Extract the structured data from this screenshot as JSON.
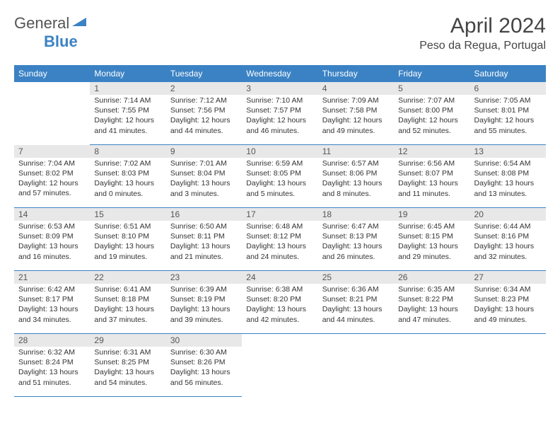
{
  "logo": {
    "text1": "General",
    "text2": "Blue"
  },
  "title": "April 2024",
  "location": "Peso da Regua, Portugal",
  "colors": {
    "header_bg": "#3b82c4",
    "header_fg": "#ffffff",
    "daynum_bg": "#e8e8e8"
  },
  "weekdays": [
    "Sunday",
    "Monday",
    "Tuesday",
    "Wednesday",
    "Thursday",
    "Friday",
    "Saturday"
  ],
  "weeks": [
    [
      null,
      {
        "n": "1",
        "l1": "Sunrise: 7:14 AM",
        "l2": "Sunset: 7:55 PM",
        "l3": "Daylight: 12 hours",
        "l4": "and 41 minutes."
      },
      {
        "n": "2",
        "l1": "Sunrise: 7:12 AM",
        "l2": "Sunset: 7:56 PM",
        "l3": "Daylight: 12 hours",
        "l4": "and 44 minutes."
      },
      {
        "n": "3",
        "l1": "Sunrise: 7:10 AM",
        "l2": "Sunset: 7:57 PM",
        "l3": "Daylight: 12 hours",
        "l4": "and 46 minutes."
      },
      {
        "n": "4",
        "l1": "Sunrise: 7:09 AM",
        "l2": "Sunset: 7:58 PM",
        "l3": "Daylight: 12 hours",
        "l4": "and 49 minutes."
      },
      {
        "n": "5",
        "l1": "Sunrise: 7:07 AM",
        "l2": "Sunset: 8:00 PM",
        "l3": "Daylight: 12 hours",
        "l4": "and 52 minutes."
      },
      {
        "n": "6",
        "l1": "Sunrise: 7:05 AM",
        "l2": "Sunset: 8:01 PM",
        "l3": "Daylight: 12 hours",
        "l4": "and 55 minutes."
      }
    ],
    [
      {
        "n": "7",
        "l1": "Sunrise: 7:04 AM",
        "l2": "Sunset: 8:02 PM",
        "l3": "Daylight: 12 hours",
        "l4": "and 57 minutes."
      },
      {
        "n": "8",
        "l1": "Sunrise: 7:02 AM",
        "l2": "Sunset: 8:03 PM",
        "l3": "Daylight: 13 hours",
        "l4": "and 0 minutes."
      },
      {
        "n": "9",
        "l1": "Sunrise: 7:01 AM",
        "l2": "Sunset: 8:04 PM",
        "l3": "Daylight: 13 hours",
        "l4": "and 3 minutes."
      },
      {
        "n": "10",
        "l1": "Sunrise: 6:59 AM",
        "l2": "Sunset: 8:05 PM",
        "l3": "Daylight: 13 hours",
        "l4": "and 5 minutes."
      },
      {
        "n": "11",
        "l1": "Sunrise: 6:57 AM",
        "l2": "Sunset: 8:06 PM",
        "l3": "Daylight: 13 hours",
        "l4": "and 8 minutes."
      },
      {
        "n": "12",
        "l1": "Sunrise: 6:56 AM",
        "l2": "Sunset: 8:07 PM",
        "l3": "Daylight: 13 hours",
        "l4": "and 11 minutes."
      },
      {
        "n": "13",
        "l1": "Sunrise: 6:54 AM",
        "l2": "Sunset: 8:08 PM",
        "l3": "Daylight: 13 hours",
        "l4": "and 13 minutes."
      }
    ],
    [
      {
        "n": "14",
        "l1": "Sunrise: 6:53 AM",
        "l2": "Sunset: 8:09 PM",
        "l3": "Daylight: 13 hours",
        "l4": "and 16 minutes."
      },
      {
        "n": "15",
        "l1": "Sunrise: 6:51 AM",
        "l2": "Sunset: 8:10 PM",
        "l3": "Daylight: 13 hours",
        "l4": "and 19 minutes."
      },
      {
        "n": "16",
        "l1": "Sunrise: 6:50 AM",
        "l2": "Sunset: 8:11 PM",
        "l3": "Daylight: 13 hours",
        "l4": "and 21 minutes."
      },
      {
        "n": "17",
        "l1": "Sunrise: 6:48 AM",
        "l2": "Sunset: 8:12 PM",
        "l3": "Daylight: 13 hours",
        "l4": "and 24 minutes."
      },
      {
        "n": "18",
        "l1": "Sunrise: 6:47 AM",
        "l2": "Sunset: 8:13 PM",
        "l3": "Daylight: 13 hours",
        "l4": "and 26 minutes."
      },
      {
        "n": "19",
        "l1": "Sunrise: 6:45 AM",
        "l2": "Sunset: 8:15 PM",
        "l3": "Daylight: 13 hours",
        "l4": "and 29 minutes."
      },
      {
        "n": "20",
        "l1": "Sunrise: 6:44 AM",
        "l2": "Sunset: 8:16 PM",
        "l3": "Daylight: 13 hours",
        "l4": "and 32 minutes."
      }
    ],
    [
      {
        "n": "21",
        "l1": "Sunrise: 6:42 AM",
        "l2": "Sunset: 8:17 PM",
        "l3": "Daylight: 13 hours",
        "l4": "and 34 minutes."
      },
      {
        "n": "22",
        "l1": "Sunrise: 6:41 AM",
        "l2": "Sunset: 8:18 PM",
        "l3": "Daylight: 13 hours",
        "l4": "and 37 minutes."
      },
      {
        "n": "23",
        "l1": "Sunrise: 6:39 AM",
        "l2": "Sunset: 8:19 PM",
        "l3": "Daylight: 13 hours",
        "l4": "and 39 minutes."
      },
      {
        "n": "24",
        "l1": "Sunrise: 6:38 AM",
        "l2": "Sunset: 8:20 PM",
        "l3": "Daylight: 13 hours",
        "l4": "and 42 minutes."
      },
      {
        "n": "25",
        "l1": "Sunrise: 6:36 AM",
        "l2": "Sunset: 8:21 PM",
        "l3": "Daylight: 13 hours",
        "l4": "and 44 minutes."
      },
      {
        "n": "26",
        "l1": "Sunrise: 6:35 AM",
        "l2": "Sunset: 8:22 PM",
        "l3": "Daylight: 13 hours",
        "l4": "and 47 minutes."
      },
      {
        "n": "27",
        "l1": "Sunrise: 6:34 AM",
        "l2": "Sunset: 8:23 PM",
        "l3": "Daylight: 13 hours",
        "l4": "and 49 minutes."
      }
    ],
    [
      {
        "n": "28",
        "l1": "Sunrise: 6:32 AM",
        "l2": "Sunset: 8:24 PM",
        "l3": "Daylight: 13 hours",
        "l4": "and 51 minutes."
      },
      {
        "n": "29",
        "l1": "Sunrise: 6:31 AM",
        "l2": "Sunset: 8:25 PM",
        "l3": "Daylight: 13 hours",
        "l4": "and 54 minutes."
      },
      {
        "n": "30",
        "l1": "Sunrise: 6:30 AM",
        "l2": "Sunset: 8:26 PM",
        "l3": "Daylight: 13 hours",
        "l4": "and 56 minutes."
      },
      null,
      null,
      null,
      null
    ]
  ]
}
